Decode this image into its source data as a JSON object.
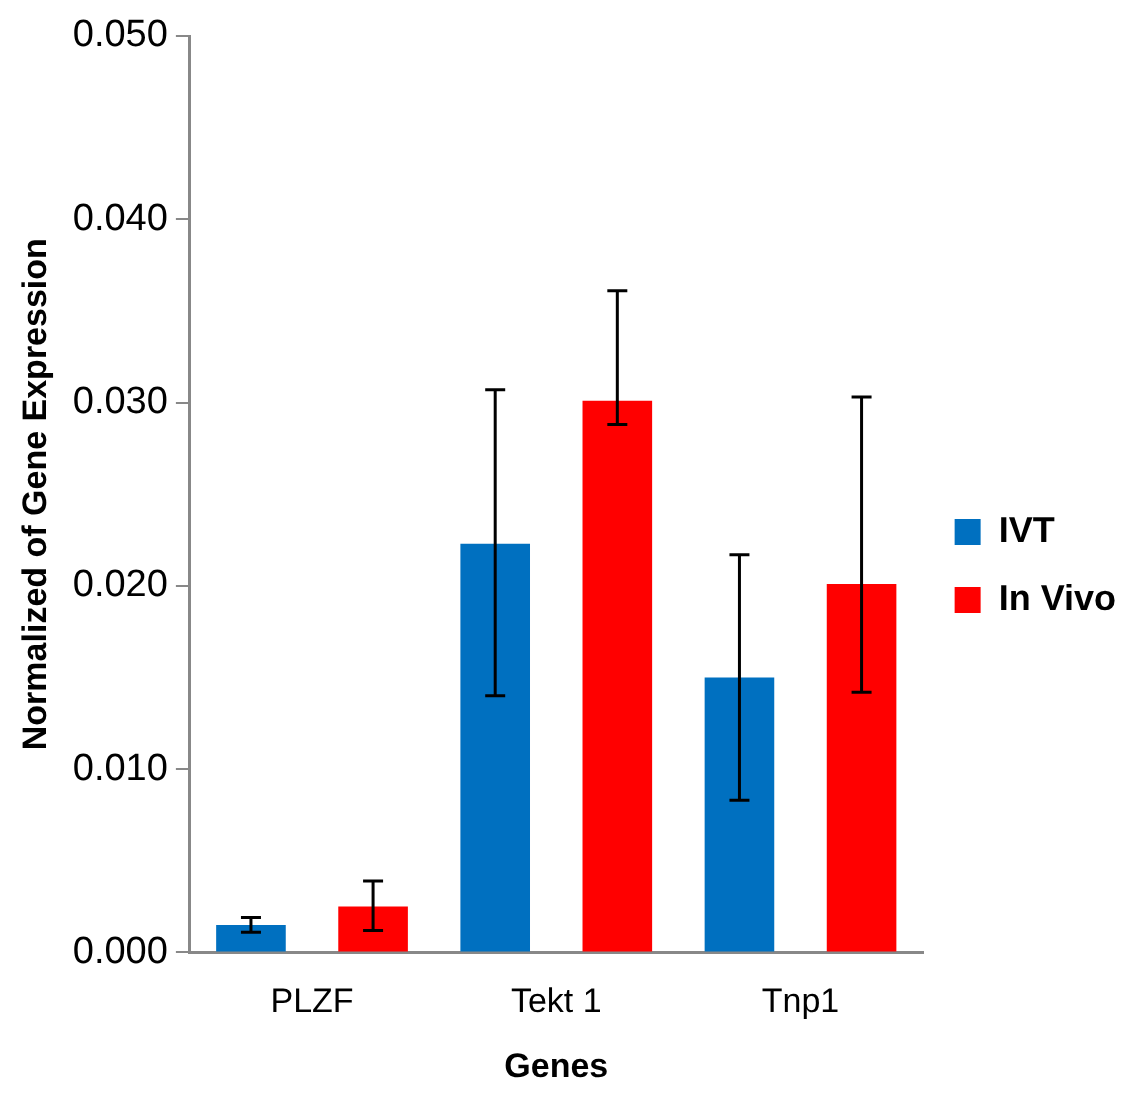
{
  "chart_data": {
    "type": "bar",
    "xlabel": "Genes",
    "ylabel": "Normalized of Gene Expression",
    "categories": [
      "PLZF",
      "Tekt 1",
      "Tnp1"
    ],
    "series": [
      {
        "name": "IVT",
        "color": "#0070c0",
        "values": [
          0.0015,
          0.0223,
          0.015
        ],
        "errors": [
          [
            0.0011,
            0.0019
          ],
          [
            0.014,
            0.0307
          ],
          [
            0.0083,
            0.0217
          ]
        ]
      },
      {
        "name": "In Vivo",
        "color": "#ff0000",
        "values": [
          0.0025,
          0.0301,
          0.0201
        ],
        "errors": [
          [
            0.0012,
            0.0039
          ],
          [
            0.0288,
            0.0361
          ],
          [
            0.0142,
            0.0303
          ]
        ]
      }
    ],
    "ylim": [
      0,
      0.05
    ],
    "yticks": [
      {
        "value": 0,
        "label": "0.000"
      },
      {
        "value": 0.01,
        "label": "0.010"
      },
      {
        "value": 0.02,
        "label": "0.020"
      },
      {
        "value": 0.03,
        "label": "0.030"
      },
      {
        "value": 0.04,
        "label": "0.040"
      },
      {
        "value": 0.05,
        "label": "0.050"
      }
    ],
    "grid": false,
    "legend": "right"
  }
}
